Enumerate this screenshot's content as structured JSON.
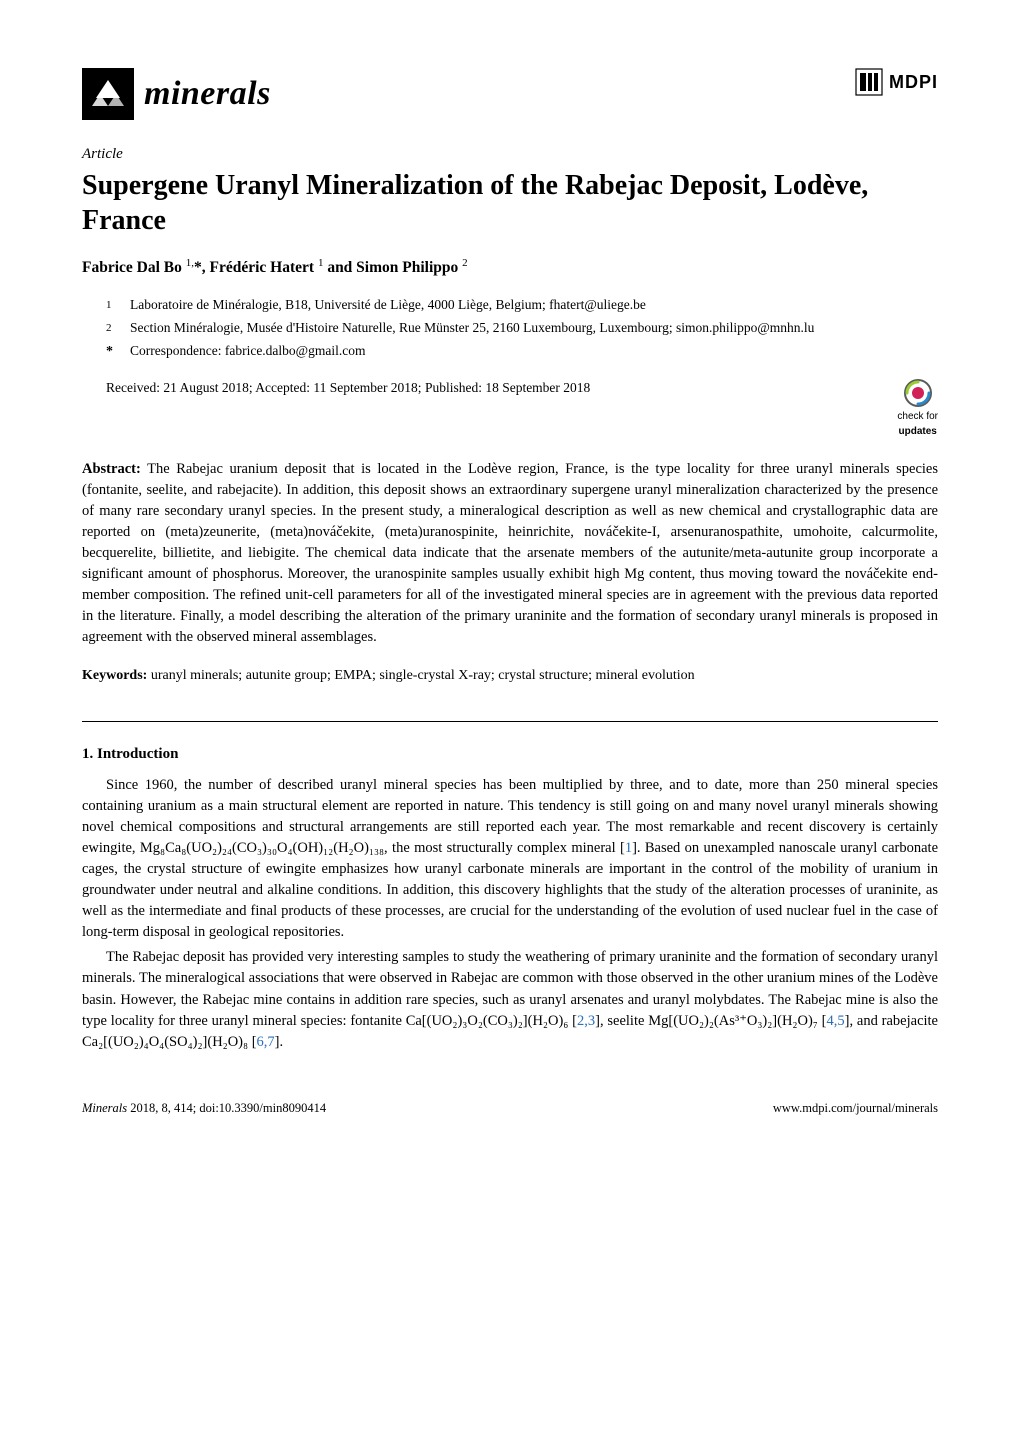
{
  "journal": {
    "logo_text": "minerals",
    "mdpi_text": "MDPI"
  },
  "article": {
    "type": "Article",
    "title": "Supergene Uranyl Mineralization of the Rabejac Deposit, Lodève, France",
    "authors_html": "Fabrice Dal Bo <sup>1,</sup>*, Frédéric Hatert <sup>1</sup> and Simon Philippo <sup>2</sup>",
    "affiliations": [
      {
        "marker": "1",
        "text": "Laboratoire de Minéralogie, B18, Université de Liège, 4000 Liège, Belgium; fhatert@uliege.be"
      },
      {
        "marker": "2",
        "text": "Section Minéralogie, Musée d'Histoire Naturelle, Rue Münster 25, 2160 Luxembourg, Luxembourg; simon.philippo@mnhn.lu"
      }
    ],
    "correspondence": {
      "marker": "*",
      "text": "Correspondence: fabrice.dalbo@gmail.com"
    },
    "dates": "Received: 21 August 2018; Accepted: 11 September 2018; Published: 18 September 2018",
    "updates_badge": {
      "line1": "check for",
      "line2": "updates"
    }
  },
  "abstract": {
    "label": "Abstract:",
    "text": "The Rabejac uranium deposit that is located in the Lodève region, France, is the type locality for three uranyl minerals species (fontanite, seelite, and rabejacite). In addition, this deposit shows an extraordinary supergene uranyl mineralization characterized by the presence of many rare secondary uranyl species. In the present study, a mineralogical description as well as new chemical and crystallographic data are reported on (meta)zeunerite, (meta)nováčekite, (meta)uranospinite, heinrichite, nováčekite-I, arsenuranospathite, umohoite, calcurmolite, becquerelite, billietite, and liebigite. The chemical data indicate that the arsenate members of the autunite/meta-autunite group incorporate a significant amount of phosphorus. Moreover, the uranospinite samples usually exhibit high Mg content, thus moving toward the nováčekite end-member composition. The refined unit-cell parameters for all of the investigated mineral species are in agreement with the previous data reported in the literature. Finally, a model describing the alteration of the primary uraninite and the formation of secondary uranyl minerals is proposed in agreement with the observed mineral assemblages."
  },
  "keywords": {
    "label": "Keywords:",
    "text": "uranyl minerals; autunite group; EMPA; single-crystal X-ray; crystal structure; mineral evolution"
  },
  "section1": {
    "heading": "1. Introduction",
    "para1": "Since 1960, the number of described uranyl mineral species has been multiplied by three, and to date, more than 250 mineral species containing uranium as a main structural element are reported in nature. This tendency is still going on and many novel uranyl minerals showing novel chemical compositions and structural arrangements are still reported each year. The most remarkable and recent discovery is certainly ewingite, Mg₈Ca₈(UO₂)₂₄(CO₃)₃₀O₄(OH)₁₂(H₂O)₁₃₈, the most structurally complex mineral [",
    "para1_ref1": "1",
    "para1_cont": "]. Based on unexampled nanoscale uranyl carbonate cages, the crystal structure of ewingite emphasizes how uranyl carbonate minerals are important in the control of the mobility of uranium in groundwater under neutral and alkaline conditions. In addition, this discovery highlights that the study of the alteration processes of uraninite, as well as the intermediate and final products of these processes, are crucial for the understanding of the evolution of used nuclear fuel in the case of long-term disposal in geological repositories.",
    "para2_a": "The Rabejac deposit has provided very interesting samples to study the weathering of primary uraninite and the formation of secondary uranyl minerals. The mineralogical associations that were observed in Rabejac are common with those observed in the other uranium mines of the Lodève basin. However, the Rabejac mine contains in addition rare species, such as uranyl arsenates and uranyl molybdates. The Rabejac mine is also the type locality for three uranyl mineral species: fontanite Ca[(UO₂)₃O₂(CO₃)₂](H₂O)₆ [",
    "para2_ref23": "2,3",
    "para2_b": "], seelite Mg[(UO₂)₂(As³⁺O₃)₂](H₂O)₇ [",
    "para2_ref45": "4,5",
    "para2_c": "], and rabejacite Ca₂[(UO₂)₄O₄(SO₄)₂](H₂O)₈ [",
    "para2_ref67": "6,7",
    "para2_d": "]."
  },
  "footer": {
    "left_italic": "Minerals",
    "left_rest": " 2018, 8, 414; doi:10.3390/min8090414",
    "right": "www.mdpi.com/journal/minerals"
  },
  "colors": {
    "link": "#2a6fb7",
    "text": "#000000",
    "bg": "#ffffff"
  }
}
